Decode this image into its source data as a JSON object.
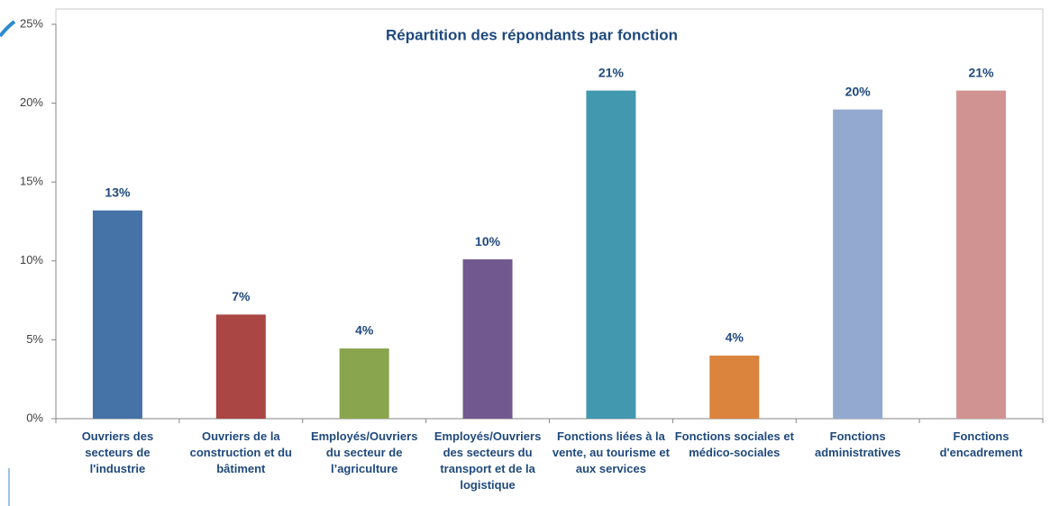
{
  "chart_data": {
    "type": "bar",
    "title": "Répartition des répondants par fonction",
    "categories": [
      "Ouvriers des secteurs de l'industrie",
      "Ouvriers de la construction et du bâtiment",
      "Employés/Ouvriers du secteur de l’agriculture",
      "Employés/Ouvriers des secteurs du transport et de la logistique",
      "Fonctions liées à la vente, au tourisme et aux services",
      "Fonctions sociales et médico-sociales",
      "Fonctions administratives",
      "Fonctions d'encadrement"
    ],
    "values": [
      13.2,
      6.6,
      4.45,
      10.1,
      20.8,
      4.0,
      19.6,
      20.8
    ],
    "value_labels": [
      "13%",
      "7%",
      "4%",
      "10%",
      "21%",
      "4%",
      "20%",
      "21%"
    ],
    "colors": [
      "#4572a7",
      "#aa4643",
      "#89a54e",
      "#71588f",
      "#4198af",
      "#db843d",
      "#93a9cf",
      "#d19392"
    ],
    "ylim": [
      0,
      25
    ],
    "yticks": [
      {
        "value": 0,
        "label": "0%"
      },
      {
        "value": 5,
        "label": "5%"
      },
      {
        "value": 10,
        "label": "10%"
      },
      {
        "value": 15,
        "label": "15%"
      },
      {
        "value": 20,
        "label": "20%"
      },
      {
        "value": 25,
        "label": "25%"
      }
    ]
  }
}
